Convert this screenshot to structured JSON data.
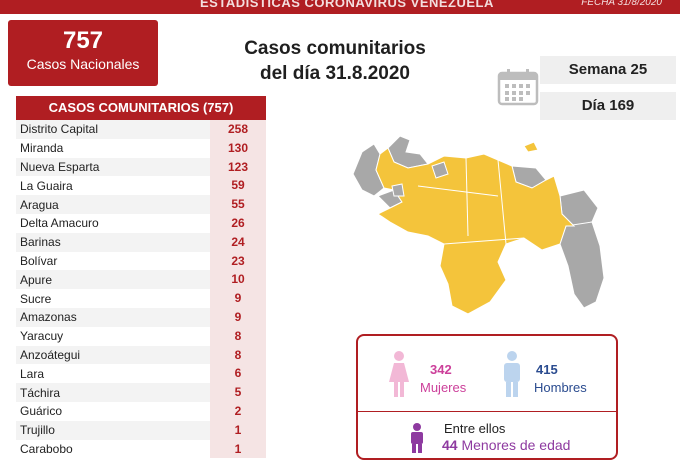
{
  "header": {
    "title": "ESTADÍSTICAS CORONAVIRUS VENEZUELA",
    "date": "FECHA 31/8/2020"
  },
  "total": {
    "value": "757",
    "label": "Casos Nacionales"
  },
  "main_title": {
    "line1": "Casos comunitarios",
    "line2": "del día 31.8.2020"
  },
  "week": "Semana 25",
  "day": "Día 169",
  "table": {
    "header": "CASOS COMUNITARIOS (757)",
    "rows": [
      {
        "state": "Distrito Capital",
        "value": "258"
      },
      {
        "state": "Miranda",
        "value": "130"
      },
      {
        "state": "Nueva Esparta",
        "value": "123"
      },
      {
        "state": "La Guaira",
        "value": "59"
      },
      {
        "state": "Aragua",
        "value": "55"
      },
      {
        "state": "Delta Amacuro",
        "value": "26"
      },
      {
        "state": "Barinas",
        "value": "24"
      },
      {
        "state": "Bolívar",
        "value": "23"
      },
      {
        "state": "Apure",
        "value": "10"
      },
      {
        "state": "Sucre",
        "value": "9"
      },
      {
        "state": "Amazonas",
        "value": "9"
      },
      {
        "state": "Yaracuy",
        "value": "8"
      },
      {
        "state": "Anzoátegui",
        "value": "8"
      },
      {
        "state": "Lara",
        "value": "6"
      },
      {
        "state": "Táchira",
        "value": "5"
      },
      {
        "state": "Guárico",
        "value": "2"
      },
      {
        "state": "Trujillo",
        "value": "1"
      },
      {
        "state": "Carabobo",
        "value": "1"
      }
    ]
  },
  "demographics": {
    "female_count": "342",
    "female_label": "Mujeres",
    "male_count": "415",
    "male_label": "Hombres",
    "entre": "Entre ellos",
    "minors_count": "44",
    "minors_label": "Menores de edad"
  },
  "colors": {
    "brand_red": "#b01e22",
    "map_yellow": "#f4c43b",
    "map_gray": "#a8a8a8",
    "female_pink": "#cc3f9a",
    "male_blue": "#2a4b8f",
    "minor_purple": "#8e3aa0"
  },
  "icons": [
    "calendar-icon",
    "female-icon",
    "male-icon",
    "child-icon"
  ]
}
